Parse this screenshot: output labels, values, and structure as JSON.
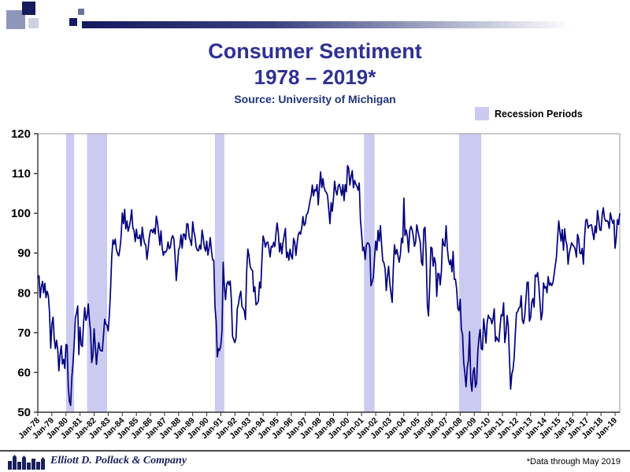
{
  "slide": {
    "title_line1": "Consumer Sentiment",
    "title_line2": "1978 – 2019*",
    "source": "Source: University of Michigan",
    "legend_label": "Recession Periods",
    "footer_company": "Elliott D. Pollack & Company",
    "footer_note": "*Data through May 2019"
  },
  "colors": {
    "line": "#000080",
    "recession_fill": "#cbcbf2",
    "title_blue": "#2e3192",
    "source_blue": "#203380",
    "axis": "#333333",
    "plot_border": "#9a9a9a"
  },
  "chart_data": {
    "type": "line",
    "title": "Consumer Sentiment 1978 – 2019*",
    "subtitle": "Source: University of Michigan",
    "frequency": "monthly",
    "x_start_year": 1978,
    "xlabel": "",
    "ylabel": "",
    "ylim": [
      50,
      120
    ],
    "y_ticks": [
      50,
      60,
      70,
      80,
      90,
      100,
      110,
      120
    ],
    "grid": false,
    "legend_position": "top-right",
    "legend": [
      "Recession Periods"
    ],
    "x_tick_labels": [
      "Jan-78",
      "Jan-79",
      "Jan-80",
      "Jan-81",
      "Jan-82",
      "Jan-83",
      "Jan-84",
      "Jan-85",
      "Jan-86",
      "Jan-87",
      "Jan-88",
      "Jan-89",
      "Jan-90",
      "Jan-91",
      "Jan-92",
      "Jan-93",
      "Jan-94",
      "Jan-95",
      "Jan-96",
      "Jan-97",
      "Jan-98",
      "Jan-99",
      "Jan-00",
      "Jan-01",
      "Jan-02",
      "Jan-03",
      "Jan-04",
      "Jan-05",
      "Jan-06",
      "Jan-07",
      "Jan-08",
      "Jan-09",
      "Jan-10",
      "Jan-11",
      "Jan-12",
      "Jan-13",
      "Jan-14",
      "Jan-15",
      "Jan-16",
      "Jan-17",
      "Jan-18",
      "Jan-19"
    ],
    "recessions": [
      [
        1980.0,
        1980.58
      ],
      [
        1981.5,
        1982.92
      ],
      [
        1990.58,
        1991.25
      ],
      [
        2001.17,
        2001.92
      ],
      [
        2007.92,
        2009.5
      ]
    ],
    "series": [
      {
        "name": "University of Michigan Consumer Sentiment Index",
        "values": [
          83.7,
          84.3,
          78.8,
          81.6,
          82.9,
          80.0,
          82.4,
          78.8,
          80.4,
          79.3,
          75.0,
          66.1,
          72.1,
          73.9,
          68.4,
          66.0,
          68.1,
          65.8,
          60.4,
          64.5,
          66.7,
          62.1,
          63.3,
          61.0,
          67.0,
          66.9,
          56.5,
          52.7,
          51.7,
          58.7,
          62.3,
          67.3,
          73.7,
          75.0,
          76.7,
          64.5,
          71.4,
          66.9,
          66.5,
          72.4,
          76.3,
          73.1,
          74.1,
          77.2,
          73.1,
          70.3,
          62.5,
          64.3,
          71.0,
          66.5,
          62.0,
          65.5,
          67.5,
          65.7,
          65.4,
          65.4,
          69.3,
          73.4,
          72.1,
          71.9,
          70.4,
          74.6,
          80.8,
          89.1,
          93.3,
          92.2,
          93.5,
          90.9,
          89.9,
          89.3,
          91.1,
          94.2,
          100.1,
          97.4,
          101.0,
          96.1,
          98.1,
          95.5,
          96.6,
          98.3,
          100.9,
          96.3,
          95.7,
          92.9,
          96.0,
          93.7,
          93.7,
          94.6,
          91.8,
          96.5,
          94.0,
          92.4,
          92.1,
          88.4,
          90.9,
          93.9,
          95.6,
          95.9,
          95.1,
          96.2,
          94.8,
          99.3,
          97.7,
          94.9,
          92.0,
          95.6,
          91.4,
          89.4,
          90.4,
          90.2,
          90.8,
          92.8,
          91.1,
          91.5,
          93.7,
          94.4,
          93.6,
          89.3,
          83.1,
          86.8,
          90.8,
          91.6,
          94.6,
          91.2,
          94.8,
          94.7,
          93.4,
          97.4,
          97.3,
          94.1,
          93.2,
          91.9,
          97.9,
          95.4,
          94.2,
          91.5,
          90.7,
          90.6,
          92.0,
          91.0,
          95.8,
          93.9,
          91.4,
          90.5,
          93.0,
          89.5,
          91.3,
          93.9,
          90.6,
          88.3,
          88.2,
          76.4,
          72.8,
          63.9,
          66.0,
          65.5,
          66.8,
          70.4,
          87.7,
          81.8,
          78.3,
          82.1,
          82.9,
          82.0,
          83.0,
          78.3,
          69.1,
          68.2,
          67.5,
          68.8,
          76.0,
          77.2,
          79.2,
          80.4,
          76.6,
          76.1,
          75.5,
          73.3,
          85.3,
          91.0,
          89.3,
          86.6,
          85.9,
          85.6,
          80.3,
          81.5,
          77.0,
          77.3,
          77.9,
          82.7,
          81.2,
          88.2,
          94.3,
          93.2,
          91.5,
          92.6,
          92.8,
          91.2,
          89.0,
          91.7,
          91.5,
          92.7,
          91.6,
          95.1,
          97.6,
          95.1,
          90.3,
          92.5,
          89.8,
          92.7,
          94.4,
          96.2,
          88.9,
          90.2,
          88.2,
          91.0,
          89.3,
          88.5,
          93.7,
          92.7,
          89.4,
          92.4,
          94.7,
          95.3,
          94.7,
          96.5,
          99.2,
          96.9,
          97.4,
          99.7,
          100.0,
          101.4,
          103.2,
          104.5,
          107.1,
          104.4,
          106.0,
          105.6,
          107.2,
          102.1,
          106.6,
          110.4,
          106.5,
          108.7,
          106.5,
          105.6,
          105.2,
          104.4,
          100.9,
          97.4,
          102.7,
          100.5,
          103.9,
          108.1,
          105.7,
          104.6,
          106.8,
          107.3,
          106.0,
          104.5,
          107.2,
          103.2,
          107.2,
          105.4,
          112.0,
          111.3,
          107.1,
          109.2,
          110.7,
          106.4,
          108.3,
          107.3,
          106.8,
          105.8,
          107.6,
          98.4,
          94.7,
          90.6,
          91.5,
          88.4,
          92.0,
          92.6,
          92.4,
          91.5,
          81.8,
          82.7,
          83.9,
          88.8,
          93.0,
          90.7,
          95.7,
          93.0,
          96.9,
          92.4,
          88.1,
          87.6,
          86.1,
          80.6,
          84.2,
          86.7,
          82.4,
          79.9,
          77.6,
          86.0,
          92.1,
          89.7,
          90.9,
          89.3,
          87.7,
          89.6,
          93.7,
          92.6,
          103.8,
          94.4,
          95.8,
          94.2,
          90.2,
          95.6,
          96.7,
          95.9,
          94.2,
          91.7,
          92.8,
          97.1,
          95.5,
          94.1,
          92.6,
          87.7,
          86.9,
          96.0,
          96.5,
          89.1,
          76.9,
          74.2,
          81.6,
          91.5,
          91.2,
          86.7,
          88.9,
          87.4,
          79.1,
          84.9,
          84.7,
          82.0,
          85.4,
          93.6,
          92.1,
          91.7,
          96.9,
          91.3,
          88.4,
          87.1,
          88.3,
          85.3,
          90.4,
          83.4,
          83.4,
          80.9,
          76.1,
          75.5,
          78.4,
          70.8,
          69.5,
          62.6,
          59.8,
          56.4,
          61.2,
          63.0,
          70.3,
          57.6,
          55.3,
          60.1,
          61.2,
          56.3,
          57.3,
          65.1,
          68.7,
          70.8,
          66.0,
          65.7,
          73.5,
          70.6,
          67.4,
          72.5,
          74.4,
          73.6,
          73.6,
          72.2,
          73.6,
          76.0,
          67.8,
          68.9,
          68.2,
          67.7,
          71.6,
          74.5,
          74.2,
          77.5,
          67.5,
          69.8,
          74.3,
          71.5,
          63.7,
          55.8,
          59.5,
          60.8,
          63.7,
          69.9,
          75.0,
          75.3,
          76.2,
          76.4,
          79.3,
          73.2,
          72.3,
          74.3,
          78.3,
          82.6,
          82.7,
          72.9,
          73.8,
          77.6,
          78.6,
          76.4,
          84.5,
          84.1,
          85.1,
          82.1,
          77.5,
          73.2,
          75.1,
          82.5,
          81.2,
          81.6,
          80.0,
          84.1,
          81.9,
          82.5,
          81.8,
          82.5,
          84.6,
          86.9,
          88.8,
          93.6,
          98.1,
          95.4,
          93.0,
          95.9,
          90.7,
          96.1,
          93.1,
          91.9,
          87.2,
          90.0,
          91.3,
          92.6,
          92.0,
          91.7,
          91.0,
          89.0,
          94.7,
          93.5,
          90.0,
          89.8,
          91.2,
          87.2,
          93.8,
          98.2,
          98.5,
          96.3,
          96.9,
          97.0,
          97.1,
          95.0,
          93.4,
          96.8,
          95.1,
          100.7,
          98.5,
          95.9,
          95.7,
          99.7,
          101.4,
          98.8,
          98.0,
          98.2,
          97.9,
          96.2,
          100.1,
          98.6,
          97.5,
          98.3,
          91.2,
          93.8,
          98.4,
          97.2,
          100.0
        ]
      }
    ]
  }
}
